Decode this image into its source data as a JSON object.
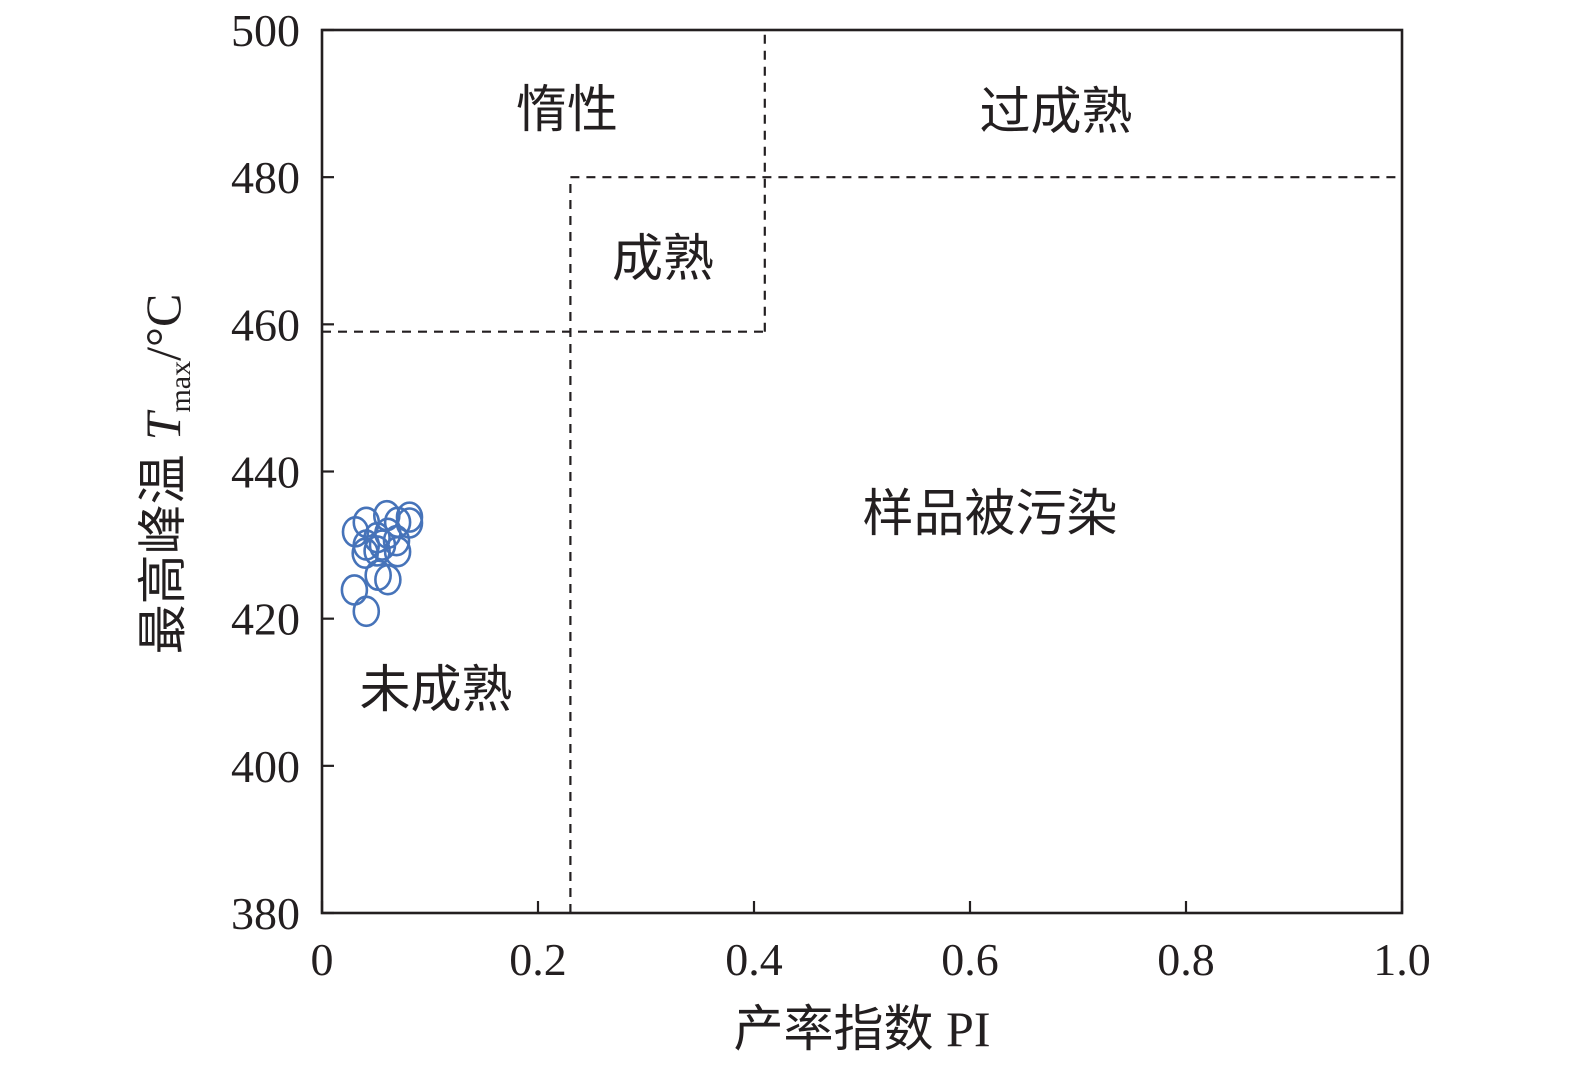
{
  "chart_data": {
    "type": "scatter",
    "xlabel": "产率指数 PI",
    "ylabel": {
      "text": "最高峰温",
      "symbol": "T",
      "subscript": "max",
      "unit": "/°C"
    },
    "xlim": [
      0,
      1.0
    ],
    "ylim": [
      380,
      500
    ],
    "xticks": [
      "0",
      "0.2",
      "0.4",
      "0.6",
      "0.8",
      "1.0"
    ],
    "yticks": [
      "380",
      "400",
      "420",
      "440",
      "460",
      "480",
      "500"
    ],
    "grid": false,
    "series": [
      {
        "color": "#4673b9",
        "x": [
          0.031,
          0.041,
          0.041,
          0.04,
          0.051,
          0.051,
          0.052,
          0.06,
          0.061,
          0.061,
          0.07,
          0.069,
          0.07,
          0.081,
          0.081,
          0.03,
          0.041,
          0.056
        ],
        "y": [
          431.8,
          433.1,
          430.0,
          428.9,
          431.0,
          429.2,
          425.9,
          434.0,
          431.6,
          425.3,
          433.1,
          430.6,
          429.1,
          433.8,
          433.0,
          423.9,
          421.0,
          430.0
        ]
      }
    ],
    "boundaries": [
      {
        "x": [
          0,
          0.41
        ],
        "y": [
          459,
          459
        ]
      },
      {
        "x": [
          0.41,
          0.41
        ],
        "y": [
          459,
          500
        ]
      },
      {
        "x": [
          0.23,
          0.23
        ],
        "y": [
          380,
          480
        ]
      },
      {
        "x": [
          0.23,
          1.0
        ],
        "y": [
          480,
          480
        ]
      }
    ],
    "annotations": [
      "惰性",
      "过成熟",
      "成熟",
      "样品被污染",
      "未成熟"
    ]
  }
}
